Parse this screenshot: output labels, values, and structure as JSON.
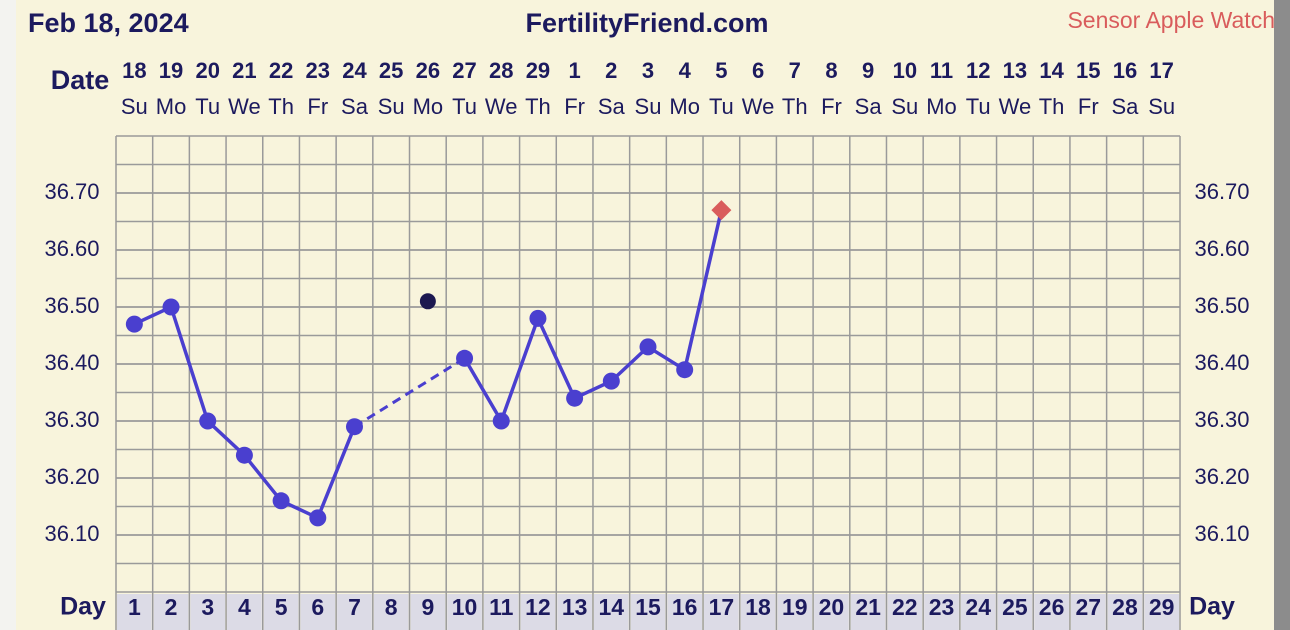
{
  "chart_data": {
    "type": "line",
    "header_date": "Feb 18, 2024",
    "title": "FertilityFriend.com",
    "date_label": "Date",
    "day_label": "Day",
    "dates": [
      "18",
      "19",
      "20",
      "21",
      "22",
      "23",
      "24",
      "25",
      "26",
      "27",
      "28",
      "29",
      "1",
      "2",
      "3",
      "4",
      "5",
      "6",
      "7",
      "8",
      "9",
      "10",
      "11",
      "12",
      "13",
      "14",
      "15",
      "16",
      "17"
    ],
    "weekdays": [
      "Su",
      "Mo",
      "Tu",
      "We",
      "Th",
      "Fr",
      "Sa",
      "Su",
      "Mo",
      "Tu",
      "We",
      "Th",
      "Fr",
      "Sa",
      "Su",
      "Mo",
      "Tu",
      "We",
      "Th",
      "Fr",
      "Sa",
      "Su",
      "Mo",
      "Tu",
      "We",
      "Th",
      "Fr",
      "Sa",
      "Su"
    ],
    "categories": [
      "1",
      "2",
      "3",
      "4",
      "5",
      "6",
      "7",
      "8",
      "9",
      "10",
      "11",
      "12",
      "13",
      "14",
      "15",
      "16",
      "17",
      "18",
      "19",
      "20",
      "21",
      "22",
      "23",
      "24",
      "25",
      "26",
      "27",
      "28",
      "29"
    ],
    "series": [
      {
        "color": "#4a3fcf",
        "marker": "circle",
        "gap_style": "dashed",
        "values": [
          36.47,
          36.5,
          36.3,
          36.24,
          36.16,
          36.13,
          36.29,
          null,
          null,
          36.41,
          36.3,
          36.48,
          36.34,
          36.37,
          36.43,
          36.39,
          null,
          null,
          null,
          null,
          null,
          null,
          null,
          null,
          null,
          null,
          null,
          null,
          null
        ]
      },
      {
        "name": "Sensor Apple Watch",
        "color": "#d95c5c",
        "marker": "diamond",
        "joined": true,
        "values": [
          null,
          null,
          null,
          null,
          null,
          null,
          null,
          null,
          null,
          null,
          null,
          null,
          null,
          null,
          null,
          null,
          36.67,
          null,
          null,
          null,
          null,
          null,
          null,
          null,
          null,
          null,
          null,
          null,
          null
        ]
      },
      {
        "color": "#1c1850",
        "marker": "circle",
        "values": [
          null,
          null,
          null,
          null,
          null,
          null,
          null,
          null,
          36.51,
          null,
          null,
          null,
          null,
          null,
          null,
          null,
          null,
          null,
          null,
          null,
          null,
          null,
          null,
          null,
          null,
          null,
          null,
          null,
          null
        ]
      }
    ],
    "ylim": [
      36.0,
      36.8
    ],
    "yticks": [
      {
        "value": 36.1,
        "label": "36.10"
      },
      {
        "value": 36.2,
        "label": "36.20"
      },
      {
        "value": 36.3,
        "label": "36.30"
      },
      {
        "value": 36.4,
        "label": "36.40"
      },
      {
        "value": 36.5,
        "label": "36.50"
      },
      {
        "value": 36.6,
        "label": "36.60"
      },
      {
        "value": 36.7,
        "label": "36.70"
      }
    ],
    "grid": true
  }
}
